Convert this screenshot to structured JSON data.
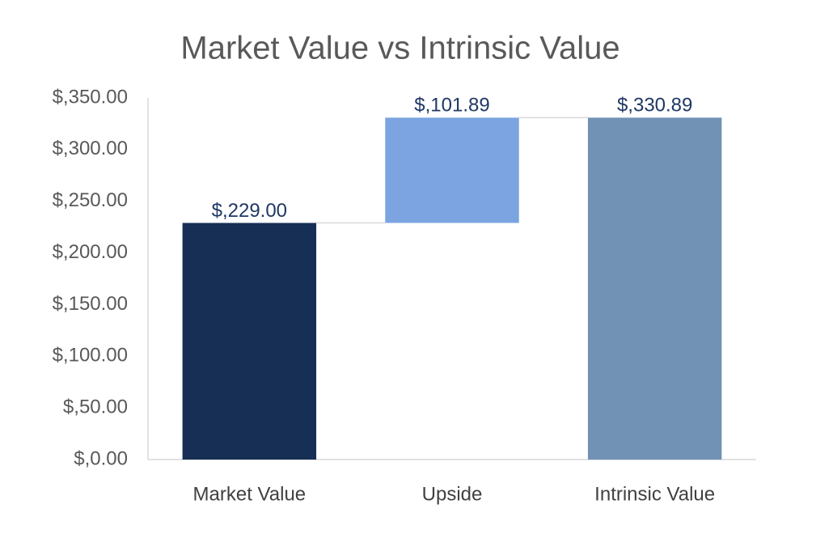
{
  "chart_data": {
    "type": "waterfall",
    "title": "Market Value vs Intrinsic Value",
    "categories": [
      "Market Value",
      "Upside",
      "Intrinsic Value"
    ],
    "values": [
      229,
      101.89,
      330.89
    ],
    "value_labels": [
      "$,229.00",
      "$,101.89",
      "$,330.89"
    ],
    "measure": [
      "absolute",
      "relative",
      "total"
    ],
    "colors": [
      "#172f55",
      "#7ba4e0",
      "#7191b5"
    ],
    "ylim": [
      0,
      350
    ],
    "yticks": [
      {
        "value": 0,
        "label": "$,0.00"
      },
      {
        "value": 50,
        "label": "$,50.00"
      },
      {
        "value": 100,
        "label": "$,100.00"
      },
      {
        "value": 150,
        "label": "$,150.00"
      },
      {
        "value": 200,
        "label": "$,200.00"
      },
      {
        "value": 250,
        "label": "$,250.00"
      },
      {
        "value": 300,
        "label": "$,300.00"
      },
      {
        "value": 350,
        "label": "$,350.00"
      }
    ],
    "grid": false
  }
}
